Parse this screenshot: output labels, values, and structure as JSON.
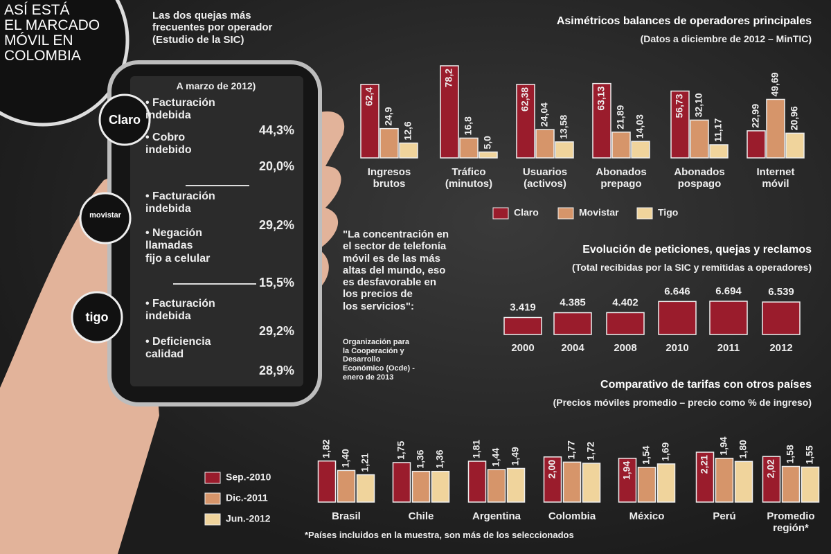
{
  "header": {
    "title": "ASÍ ESTÁ\nEL MARCADO\nMÓVIL EN\nCOLOMBIA"
  },
  "phone": {
    "title": "Las dos quejas más\nfrecuentes por operador\n(Estudio de la SIC)",
    "date": "A marzo de 2012)",
    "operators": [
      {
        "name": "Claro",
        "complaints": [
          {
            "label": "• Facturación\nindebida",
            "value": "44,3%"
          },
          {
            "label": "• Cobro\nindebido",
            "value": "20,0%"
          }
        ]
      },
      {
        "name": "movistar",
        "complaints": [
          {
            "label": "• Facturación\nindebida",
            "value": "29,2%"
          },
          {
            "label": "• Negación\nllamadas\nfijo a celular",
            "value": "15,5%"
          }
        ]
      },
      {
        "name": "tigo",
        "complaints": [
          {
            "label": "• Facturación\nindebida",
            "value": "29,2%"
          },
          {
            "label": "• Deficiencia\ncalidad",
            "value": "28,9%"
          }
        ]
      }
    ]
  },
  "quote": {
    "text": "\"La concentración en\nel sector de telefonía\nmóvil es de las más\naltas del mundo, eso\nes desfavorable en\nlos precios de\nlos servicios\":",
    "source": "Organización para\nla Cooperación y\nDesarrollo\nEconómico (Ocde) -\nenero de 2013"
  },
  "chart_data": [
    {
      "type": "bar",
      "title": "Asimétricos balances de operadores principales",
      "subtitle": "(Datos a diciembre de 2012 – MinTIC)",
      "categories": [
        "Ingresos\nbrutos",
        "Tráfico\n(minutos)",
        "Usuarios\n(activos)",
        "Abonados\nprepago",
        "Abonados\npospago",
        "Internet\nmóvil"
      ],
      "series": [
        {
          "name": "Claro",
          "color": "#9a1c2c",
          "values": [
            62.4,
            78.2,
            62.38,
            63.13,
            56.73,
            22.99
          ],
          "value_labels": [
            "62,4",
            "78,2",
            "62,38",
            "63,13",
            "56,73",
            "22,99"
          ]
        },
        {
          "name": "Movistar",
          "color": "#d6956a",
          "values": [
            24.9,
            16.8,
            24.04,
            21.89,
            32.1,
            49.69
          ],
          "value_labels": [
            "24,9",
            "16,8",
            "24,04",
            "21,89",
            "32,10",
            "49,69"
          ]
        },
        {
          "name": "Tigo",
          "color": "#f0d49c",
          "values": [
            12.6,
            5.0,
            13.58,
            14.03,
            11.17,
            20.96
          ],
          "value_labels": [
            "12,6",
            "5,0",
            "13,58",
            "14,03",
            "11,17",
            "20,96"
          ]
        }
      ]
    },
    {
      "type": "bar",
      "title": "Evolución de peticiones, quejas y reclamos",
      "subtitle": "(Total recibidas por la SIC y remitidas a operadores)",
      "categories": [
        "2000",
        "2004",
        "2008",
        "2010",
        "2011",
        "2012"
      ],
      "color": "#9a1c2c",
      "values": [
        3419,
        4385,
        4402,
        6646,
        6694,
        6539
      ],
      "value_labels": [
        "3.419",
        "4.385",
        "4.402",
        "6.646",
        "6.694",
        "6.539"
      ]
    },
    {
      "type": "bar",
      "title": "Comparativo de tarifas con otros países",
      "subtitle": "(Precios móviles promedio – precio como % de ingreso)",
      "categories": [
        "Brasil",
        "Chile",
        "Argentina",
        "Colombia",
        "México",
        "Perú",
        "Promedio\nregión*"
      ],
      "series": [
        {
          "name": "Sep.-2010",
          "color": "#9a1c2c",
          "values": [
            1.82,
            1.75,
            1.81,
            2.0,
            1.94,
            2.21,
            2.02
          ],
          "value_labels": [
            "1,82",
            "1,75",
            "1,81",
            "2,00",
            "1,94",
            "2,21",
            "2,02"
          ]
        },
        {
          "name": "Dic.-2011",
          "color": "#d6956a",
          "values": [
            1.4,
            1.36,
            1.44,
            1.77,
            1.54,
            1.94,
            1.58
          ],
          "value_labels": [
            "1,40",
            "1,36",
            "1,44",
            "1,77",
            "1,54",
            "1,94",
            "1,58"
          ]
        },
        {
          "name": "Jun.-2012",
          "color": "#f0d49c",
          "values": [
            1.21,
            1.36,
            1.49,
            1.72,
            1.69,
            1.8,
            1.55
          ],
          "value_labels": [
            "1,21",
            "1,36",
            "1,49",
            "1,72",
            "1,69",
            "1,80",
            "1,55"
          ]
        }
      ],
      "footnote": "*Países incluidos en la muestra, son más de los seleccionados"
    }
  ]
}
